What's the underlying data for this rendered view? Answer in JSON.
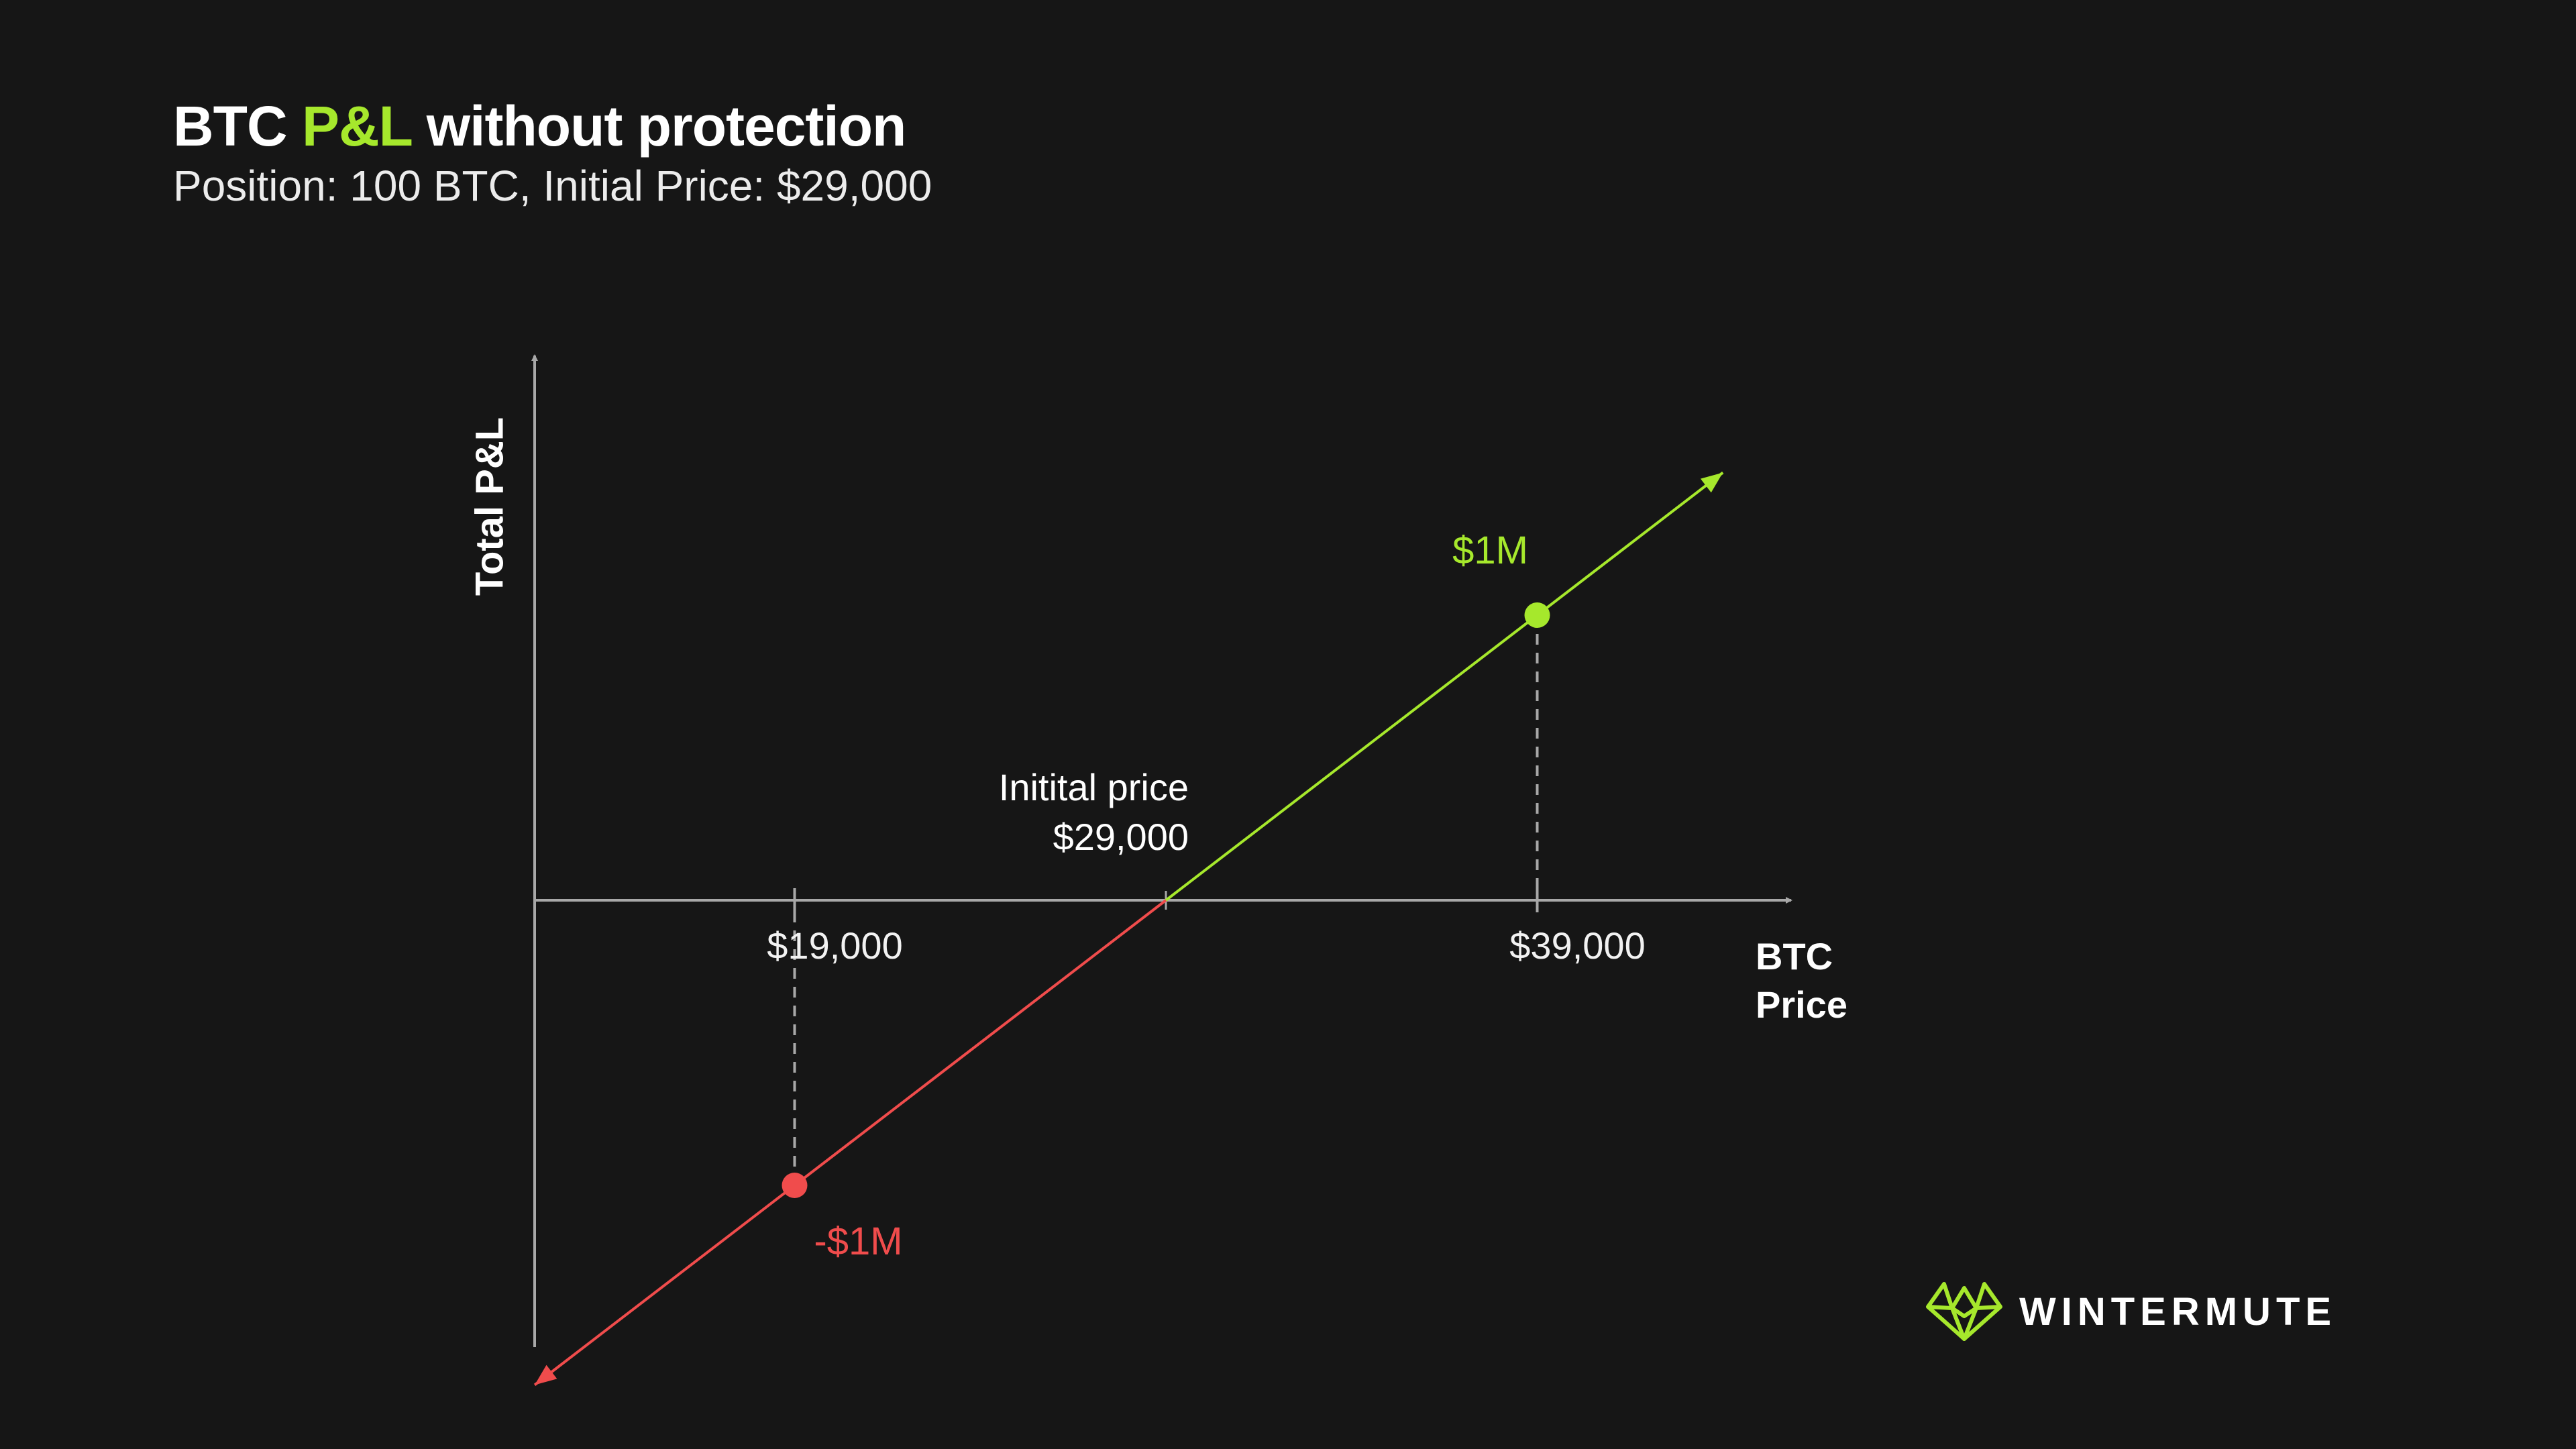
{
  "header": {
    "title_prefix": "BTC ",
    "title_accent": "P&L",
    "title_suffix": " without protection",
    "subtitle": "Position: 100 BTC, Initial Price: $29,000"
  },
  "colors": {
    "background": "#161616",
    "gain": "#a6e82c",
    "loss": "#f04c4c",
    "axis": "#a8a8a8"
  },
  "chart_data": {
    "type": "line",
    "ylabel": "Total P&L",
    "xlabel_line1": "BTC",
    "xlabel_line2": "Price",
    "annotation": {
      "line1": "Initital price",
      "line2": "$29,000",
      "x": 29000
    },
    "x_ticks": [
      {
        "label": "$19,000",
        "value": 19000
      },
      {
        "label": "$39,000",
        "value": 39000
      }
    ],
    "points": [
      {
        "x": 19000,
        "y": -1000000,
        "label": "-$1M",
        "color": "loss"
      },
      {
        "x": 39000,
        "y": 1000000,
        "label": "$1M",
        "color": "gain"
      }
    ],
    "series": [
      {
        "segment": "loss",
        "x": [
          12000,
          29000
        ],
        "y": [
          -1700000,
          0
        ]
      },
      {
        "segment": "gain",
        "x": [
          29000,
          44000
        ],
        "y": [
          0,
          1500000
        ]
      }
    ]
  },
  "brand": {
    "name": "WINTERMUTE"
  }
}
